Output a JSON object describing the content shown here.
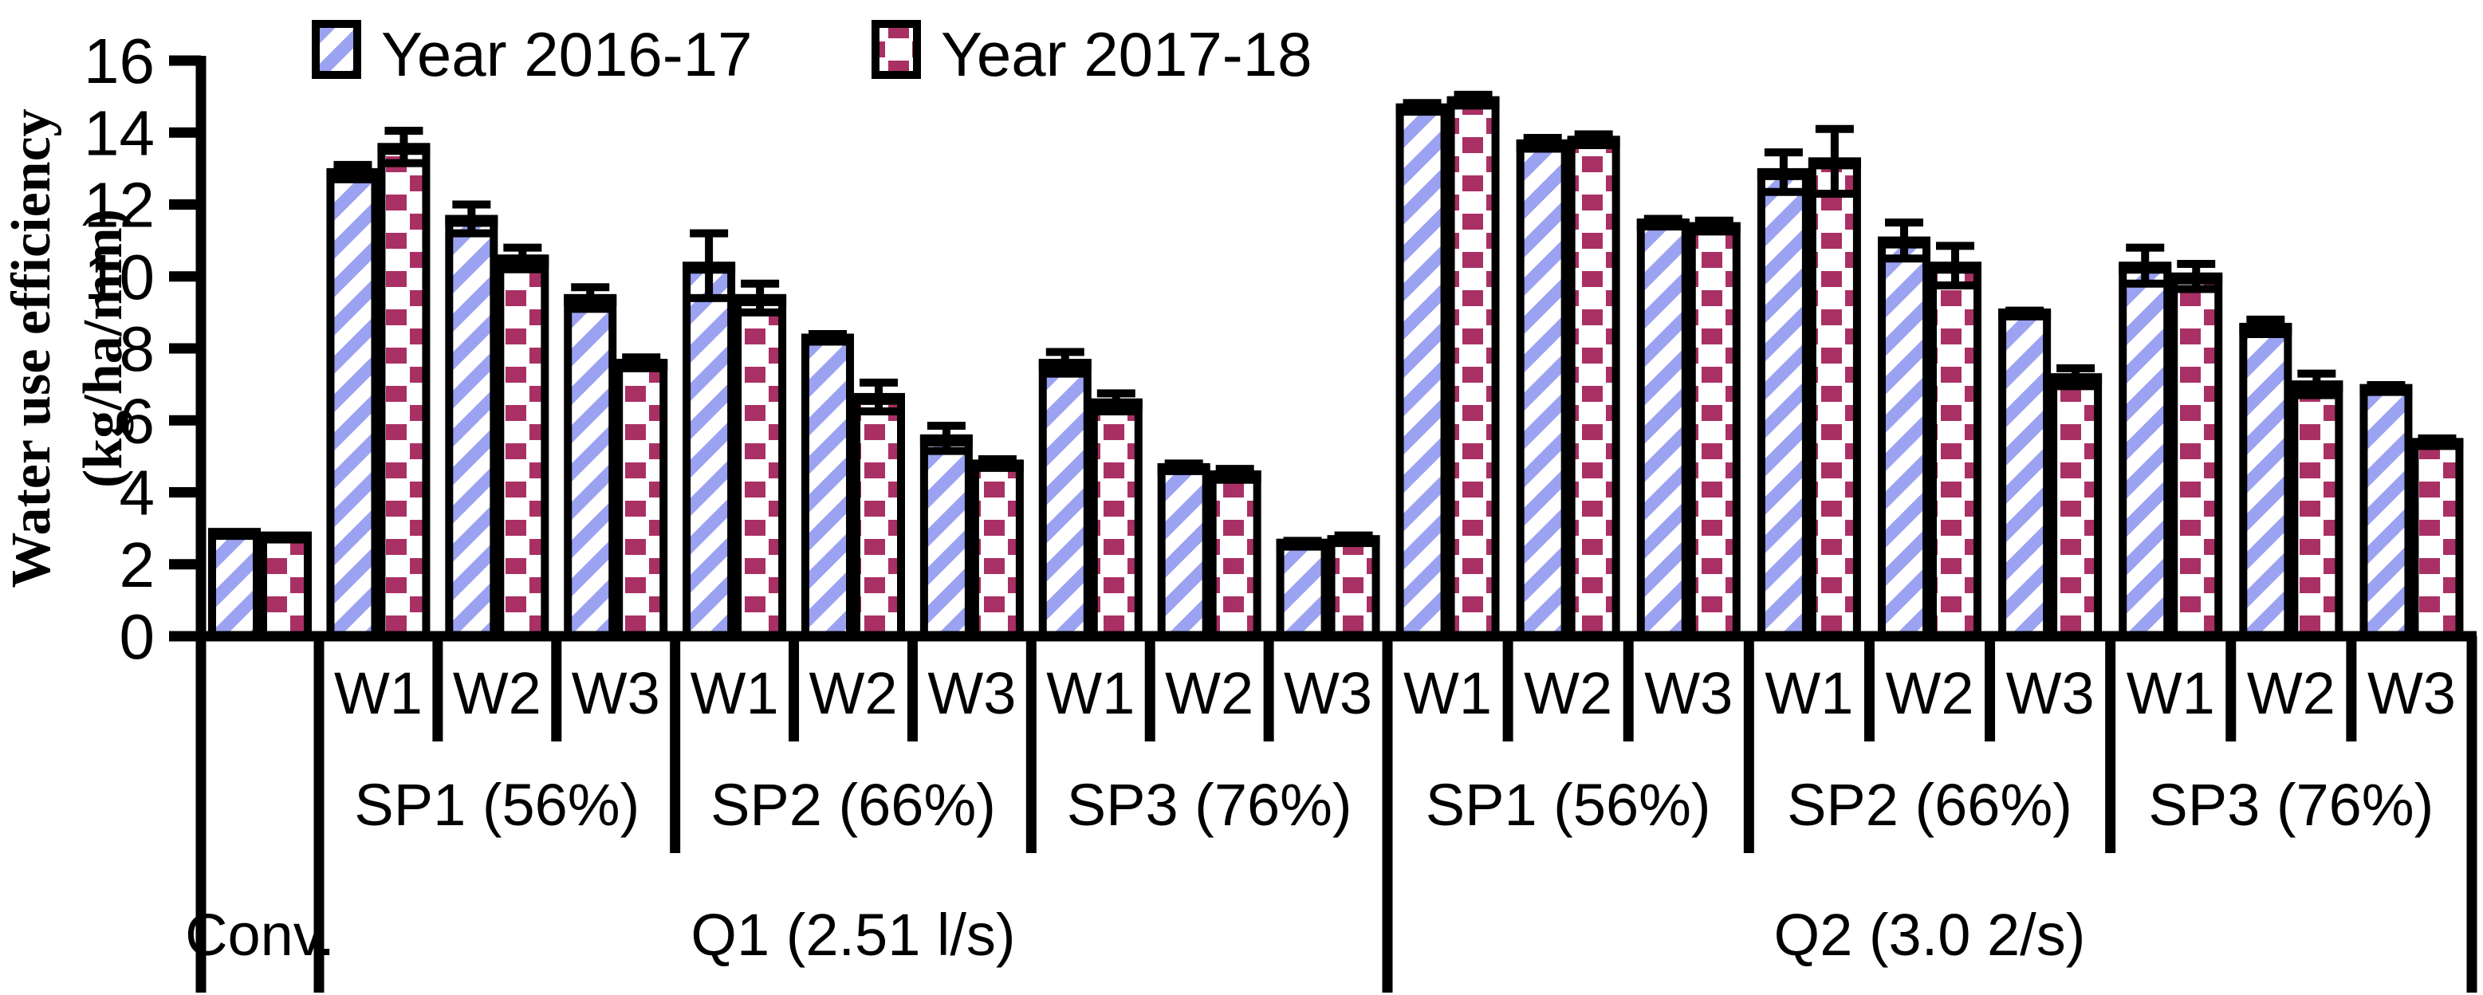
{
  "chart_data": {
    "type": "bar",
    "title": "",
    "ylabel": [
      "Water use efficiency",
      "(kg/ha/mm)"
    ],
    "y_axis": {
      "min": 0,
      "max": 16,
      "step": 2,
      "ticks": [
        "0",
        "2",
        "4",
        "6",
        "8",
        "10",
        "12",
        "14",
        "16"
      ]
    },
    "legend_position": "top",
    "grid": false,
    "series": [
      {
        "name": "Year 2016-17",
        "pattern": "diagonal-stripes",
        "color": "#9ba2f1",
        "outline": "#000000"
      },
      {
        "name": "Year 2017-18",
        "pattern": "dotted-squares",
        "color": "#a93064",
        "outline": "#000000"
      }
    ],
    "sections": [
      {
        "label": "Conv.",
        "sps": [
          {
            "label": "",
            "ws": [
              {
                "label": "",
                "values": [
                  2.9,
                  2.8
                ],
                "errors": [
                  0,
                  0
                ]
              }
            ]
          }
        ]
      },
      {
        "label": "Q1 (2.51 l/s)",
        "sps": [
          {
            "label": "SP1 (56%)",
            "ws": [
              {
                "label": "W1",
                "values": [
                  12.9,
                  13.6
                ],
                "errors": [
                  0.2,
                  0.45
                ]
              },
              {
                "label": "W2",
                "values": [
                  11.6,
                  10.5
                ],
                "errors": [
                  0.4,
                  0.3
                ]
              },
              {
                "label": "W3",
                "values": [
                  9.4,
                  7.6
                ],
                "errors": [
                  0.3,
                  0.15
                ]
              }
            ]
          },
          {
            "label": "SP2 (66%)",
            "ws": [
              {
                "label": "W1",
                "values": [
                  10.3,
                  9.4
                ],
                "errors": [
                  0.9,
                  0.4
                ]
              },
              {
                "label": "W2",
                "values": [
                  8.3,
                  6.65
                ],
                "errors": [
                  0.1,
                  0.4
                ]
              },
              {
                "label": "W3",
                "values": [
                  5.5,
                  4.8
                ],
                "errors": [
                  0.35,
                  0.12
                ]
              }
            ]
          },
          {
            "label": "SP3 (76%)",
            "ws": [
              {
                "label": "W1",
                "values": [
                  7.6,
                  6.5
                ],
                "errors": [
                  0.3,
                  0.25
                ]
              },
              {
                "label": "W2",
                "values": [
                  4.7,
                  4.5
                ],
                "errors": [
                  0.1,
                  0.15
                ]
              },
              {
                "label": "W3",
                "values": [
                  2.6,
                  2.7
                ],
                "errors": [
                  0.05,
                  0.1
                ]
              }
            ]
          }
        ]
      },
      {
        "label": "Q2 (3.0 2/s)",
        "sps": [
          {
            "label": "SP1 (56%)",
            "ws": [
              {
                "label": "W1",
                "values": [
                  14.7,
                  14.9
                ],
                "errors": [
                  0.12,
                  0.15
                ]
              },
              {
                "label": "W2",
                "values": [
                  13.7,
                  13.8
                ],
                "errors": [
                  0.15,
                  0.15
                ]
              },
              {
                "label": "W3",
                "values": [
                  11.5,
                  11.4
                ],
                "errors": [
                  0.1,
                  0.15
                ]
              }
            ]
          },
          {
            "label": "SP2 (66%)",
            "ws": [
              {
                "label": "W1",
                "values": [
                  12.9,
                  13.2
                ],
                "errors": [
                  0.55,
                  0.9
                ]
              },
              {
                "label": "W2",
                "values": [
                  11.0,
                  10.3
                ],
                "errors": [
                  0.5,
                  0.55
                ]
              },
              {
                "label": "W3",
                "values": [
                  9.0,
                  7.2
                ],
                "errors": [
                  0.05,
                  0.25
                ]
              }
            ]
          },
          {
            "label": "SP3 (76%)",
            "ws": [
              {
                "label": "W1",
                "values": [
                  10.3,
                  10.0
                ],
                "errors": [
                  0.5,
                  0.35
                ]
              },
              {
                "label": "W2",
                "values": [
                  8.6,
                  7.0
                ],
                "errors": [
                  0.2,
                  0.3
                ]
              },
              {
                "label": "W3",
                "values": [
                  6.9,
                  5.4
                ],
                "errors": [
                  0.08,
                  0.1
                ]
              }
            ]
          }
        ]
      }
    ]
  }
}
